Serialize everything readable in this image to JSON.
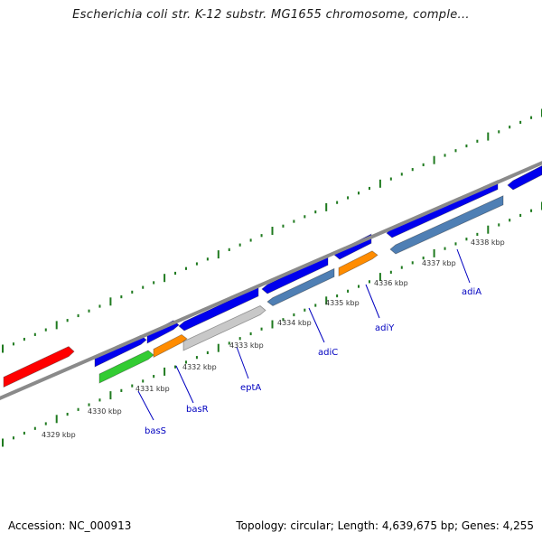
{
  "title": "Escherichia coli str. K-12 substr. MG1655 chromosome, comple...",
  "colors": {
    "background": "#ffffff",
    "backbone": "#8a8a8a",
    "tick": "#1f7a1f",
    "gene_label": "#0000c0",
    "kbp_label": "#333333"
  },
  "ruler": {
    "kbp_labels": [
      "4329 kbp",
      "4330 kbp",
      "4331 kbp",
      "4332 kbp",
      "4333 kbp",
      "4334 kbp",
      "4335 kbp",
      "4336 kbp",
      "4337 kbp",
      "4338 kbp"
    ]
  },
  "genes": [
    {
      "name": "basS",
      "color": "#33cc33"
    },
    {
      "name": "basR",
      "color": "#ff8c00"
    },
    {
      "name": "eptA",
      "color": "#c8c8c8"
    },
    {
      "name": "adiC",
      "color": "#4f7fb4"
    },
    {
      "name": "adiY",
      "color": "#ff8c00"
    },
    {
      "name": "adiA",
      "color": "#4f7fb4"
    }
  ],
  "other_features": [
    {
      "id": "red-feature",
      "color": "#ff0000"
    },
    {
      "id": "blue-feature",
      "color": "#0000ee"
    }
  ],
  "footer": {
    "accession": "Accession: NC_000913",
    "topology": "Topology: circular; Length: 4,639,675 bp; Genes: 4,255"
  }
}
